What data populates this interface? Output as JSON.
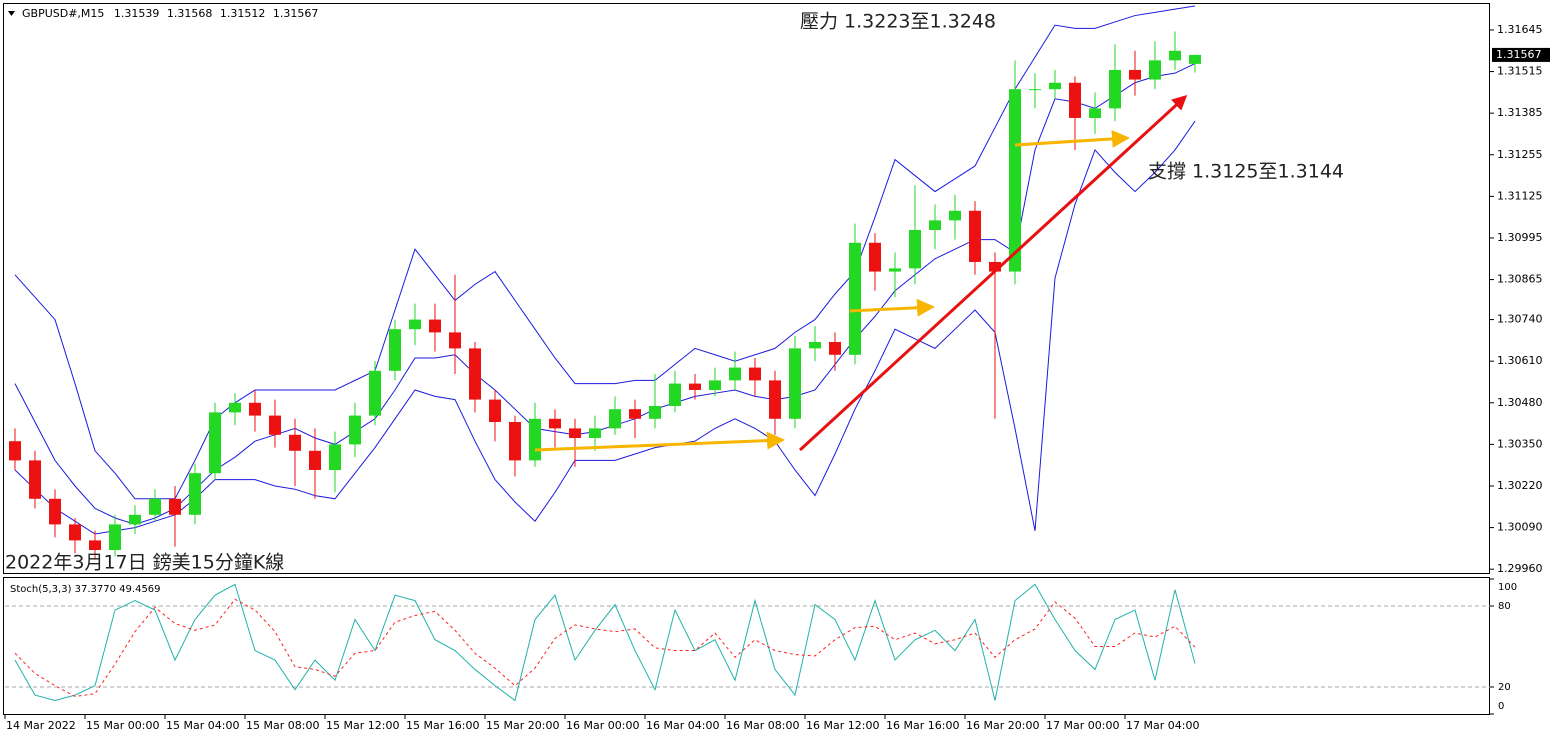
{
  "chart_data": {
    "type": "candlestick",
    "symbol": "GBPUSD#,M15",
    "title": "2022年3月17日 鎊美15分鐘K線",
    "annotations": [
      "壓力 1.3223至1.3248",
      "支撐 1.3125至1.3144"
    ],
    "up_color": "#22d822",
    "down_color": "#ee1111",
    "x": [
      "2022-03-14 20:00",
      "2022-03-14 21:00",
      "2022-03-14 22:00",
      "2022-03-14 23:00",
      "2022-03-15 00:00",
      "2022-03-15 01:00",
      "2022-03-15 02:00",
      "2022-03-15 03:00",
      "2022-03-15 04:00",
      "2022-03-15 05:00",
      "2022-03-15 06:00",
      "2022-03-15 07:00",
      "2022-03-15 08:00",
      "2022-03-15 09:00",
      "2022-03-15 10:00",
      "2022-03-15 11:00",
      "2022-03-15 12:00",
      "2022-03-15 13:00",
      "2022-03-15 14:00",
      "2022-03-15 15:00",
      "2022-03-15 16:00",
      "2022-03-15 17:00",
      "2022-03-15 18:00",
      "2022-03-15 19:00",
      "2022-03-15 20:00",
      "2022-03-15 21:00",
      "2022-03-15 22:00",
      "2022-03-15 23:00",
      "2022-03-16 00:00",
      "2022-03-16 01:00",
      "2022-03-16 02:00",
      "2022-03-16 03:00",
      "2022-03-16 04:00",
      "2022-03-16 05:00",
      "2022-03-16 06:00",
      "2022-03-16 07:00",
      "2022-03-16 08:00",
      "2022-03-16 09:00",
      "2022-03-16 10:00",
      "2022-03-16 11:00",
      "2022-03-16 12:00",
      "2022-03-16 13:00",
      "2022-03-16 14:00",
      "2022-03-16 15:00",
      "2022-03-16 16:00",
      "2022-03-16 17:00",
      "2022-03-16 18:00",
      "2022-03-16 19:00",
      "2022-03-16 20:00",
      "2022-03-16 21:00",
      "2022-03-16 22:00",
      "2022-03-16 23:00",
      "2022-03-17 00:00",
      "2022-03-17 01:00",
      "2022-03-17 02:00",
      "2022-03-17 03:00",
      "2022-03-17 04:00",
      "2022-03-17 05:00",
      "2022-03-17 06:00",
      "2022-03-17 07:00"
    ],
    "open": [
      1.3036,
      1.303,
      1.3018,
      1.301,
      1.3005,
      1.3002,
      1.301,
      1.3013,
      1.3018,
      1.3013,
      1.3026,
      1.3045,
      1.3048,
      1.3044,
      1.3038,
      1.3033,
      1.3027,
      1.3035,
      1.3044,
      1.3058,
      1.3071,
      1.3074,
      1.307,
      1.3065,
      1.3049,
      1.3042,
      1.303,
      1.3043,
      1.304,
      1.3037,
      1.304,
      1.3046,
      1.3043,
      1.3047,
      1.3054,
      1.3052,
      1.3055,
      1.3059,
      1.3055,
      1.3043,
      1.3065,
      1.3067,
      1.3063,
      1.3098,
      1.3089,
      1.309,
      1.3102,
      1.3105,
      1.3108,
      1.3092,
      1.3089,
      1.3146,
      1.3146,
      1.3148,
      1.3137,
      1.314,
      1.3152,
      1.3149,
      1.3155,
      1.31539
    ],
    "high": [
      1.304,
      1.3033,
      1.3021,
      1.3012,
      1.3008,
      1.3013,
      1.3016,
      1.3021,
      1.3022,
      1.3029,
      1.3048,
      1.3051,
      1.3052,
      1.3049,
      1.3043,
      1.304,
      1.3039,
      1.3048,
      1.3061,
      1.3074,
      1.3079,
      1.3079,
      1.3088,
      1.3067,
      1.3052,
      1.3044,
      1.3048,
      1.3046,
      1.3043,
      1.3044,
      1.305,
      1.3049,
      1.3057,
      1.3058,
      1.3057,
      1.3059,
      1.3064,
      1.3062,
      1.3058,
      1.3069,
      1.3072,
      1.307,
      1.3104,
      1.3101,
      1.3095,
      1.3116,
      1.311,
      1.3113,
      1.3111,
      1.3095,
      1.3155,
      1.3151,
      1.3152,
      1.315,
      1.3145,
      1.316,
      1.3158,
      1.3161,
      1.3164,
      1.31568
    ],
    "low": [
      1.3027,
      1.3015,
      1.3006,
      1.3001,
      1.2999,
      1.3,
      1.3007,
      1.3011,
      1.3003,
      1.301,
      1.3024,
      1.3041,
      1.3039,
      1.3034,
      1.3022,
      1.3018,
      1.302,
      1.3031,
      1.3041,
      1.3055,
      1.3066,
      1.3064,
      1.3057,
      1.3045,
      1.3036,
      1.3025,
      1.3028,
      1.3034,
      1.3028,
      1.3033,
      1.3038,
      1.3037,
      1.304,
      1.3045,
      1.3049,
      1.305,
      1.3052,
      1.305,
      1.3038,
      1.304,
      1.3061,
      1.3058,
      1.306,
      1.3083,
      1.3081,
      1.3085,
      1.3096,
      1.3099,
      1.3088,
      1.3043,
      1.3085,
      1.314,
      1.3143,
      1.3127,
      1.3132,
      1.3136,
      1.3144,
      1.3146,
      1.3152,
      1.31512
    ],
    "close": [
      1.303,
      1.3018,
      1.301,
      1.3005,
      1.3002,
      1.301,
      1.3013,
      1.3018,
      1.3013,
      1.3026,
      1.3045,
      1.3048,
      1.3044,
      1.3038,
      1.3033,
      1.3027,
      1.3035,
      1.3044,
      1.3058,
      1.3071,
      1.3074,
      1.307,
      1.3065,
      1.3049,
      1.3042,
      1.303,
      1.3043,
      1.304,
      1.3037,
      1.304,
      1.3046,
      1.3043,
      1.3047,
      1.3054,
      1.3052,
      1.3055,
      1.3059,
      1.3055,
      1.3043,
      1.3065,
      1.3067,
      1.3063,
      1.3098,
      1.3089,
      1.309,
      1.3102,
      1.3105,
      1.3108,
      1.3092,
      1.3089,
      1.3146,
      1.3146,
      1.3148,
      1.3137,
      1.314,
      1.3152,
      1.3149,
      1.3155,
      1.3158,
      1.31567
    ],
    "bollinger": {
      "color": "#1a1ae0",
      "upper": [
        1.3088,
        1.3081,
        1.3074,
        1.3054,
        1.3033,
        1.3026,
        1.3018,
        1.3018,
        1.3018,
        1.303,
        1.3043,
        1.3048,
        1.3052,
        1.3052,
        1.3052,
        1.3052,
        1.3052,
        1.3055,
        1.3058,
        1.3077,
        1.3096,
        1.3088,
        1.308,
        1.3085,
        1.3089,
        1.308,
        1.3071,
        1.3062,
        1.3054,
        1.3054,
        1.3054,
        1.3055,
        1.3055,
        1.306,
        1.3065,
        1.3063,
        1.3061,
        1.3063,
        1.3065,
        1.307,
        1.3074,
        1.3082,
        1.3089,
        1.3106,
        1.3124,
        1.3119,
        1.3114,
        1.3118,
        1.3122,
        1.3134,
        1.3146,
        1.3156,
        1.3166,
        1.3165,
        1.3165,
        1.3167,
        1.3169,
        1.317,
        1.3171,
        1.3172
      ],
      "middle": [
        1.3054,
        1.3042,
        1.303,
        1.3022,
        1.3015,
        1.3012,
        1.301,
        1.3012,
        1.3015,
        1.3021,
        1.3027,
        1.3031,
        1.3036,
        1.3038,
        1.304,
        1.3037,
        1.3035,
        1.3039,
        1.3043,
        1.3052,
        1.3062,
        1.3062,
        1.3063,
        1.3057,
        1.3052,
        1.3046,
        1.304,
        1.3039,
        1.3038,
        1.3039,
        1.3041,
        1.3043,
        1.3046,
        1.3048,
        1.305,
        1.3051,
        1.3052,
        1.305,
        1.3049,
        1.305,
        1.3052,
        1.306,
        1.3068,
        1.3075,
        1.3083,
        1.3088,
        1.3093,
        1.3096,
        1.3099,
        1.3099,
        1.3095,
        1.3127,
        1.3143,
        1.3142,
        1.314,
        1.3144,
        1.3148,
        1.315,
        1.3151,
        1.3154
      ],
      "lower": [
        1.3027,
        1.3021,
        1.3015,
        1.3011,
        1.3007,
        1.3008,
        1.3009,
        1.3011,
        1.3013,
        1.3018,
        1.3024,
        1.3024,
        1.3024,
        1.3022,
        1.3021,
        1.3019,
        1.3018,
        1.3026,
        1.3034,
        1.3043,
        1.3052,
        1.305,
        1.3049,
        1.3036,
        1.3024,
        1.3017,
        1.3011,
        1.302,
        1.303,
        1.303,
        1.303,
        1.3032,
        1.3034,
        1.3035,
        1.3036,
        1.304,
        1.3043,
        1.304,
        1.3036,
        1.3027,
        1.3019,
        1.3032,
        1.3046,
        1.3058,
        1.3071,
        1.3068,
        1.3065,
        1.3071,
        1.3077,
        1.307,
        1.304,
        1.3008,
        1.3087,
        1.311,
        1.3127,
        1.312,
        1.3114,
        1.312,
        1.3127,
        1.3136
      ]
    },
    "xlim": [
      "2022-03-14 20:00",
      "2022-03-17 22:15"
    ],
    "xticks": [
      {
        "value": "2022-03-14 20:00",
        "label": "14 Mar 2022"
      },
      {
        "value": "2022-03-15 00:00",
        "label": "15 Mar 00:00"
      },
      {
        "value": "2022-03-15 04:00",
        "label": "15 Mar 04:00"
      },
      {
        "value": "2022-03-15 08:00",
        "label": "15 Mar 08:00"
      },
      {
        "value": "2022-03-15 12:00",
        "label": "15 Mar 12:00"
      },
      {
        "value": "2022-03-15 16:00",
        "label": "15 Mar 16:00"
      },
      {
        "value": "2022-03-15 20:00",
        "label": "15 Mar 20:00"
      },
      {
        "value": "2022-03-16 00:00",
        "label": "16 Mar 00:00"
      },
      {
        "value": "2022-03-16 04:00",
        "label": "16 Mar 04:00"
      },
      {
        "value": "2022-03-16 08:00",
        "label": "16 Mar 08:00"
      },
      {
        "value": "2022-03-16 12:00",
        "label": "16 Mar 12:00"
      },
      {
        "value": "2022-03-16 16:00",
        "label": "16 Mar 16:00"
      },
      {
        "value": "2022-03-16 20:00",
        "label": "16 Mar 20:00"
      },
      {
        "value": "2022-03-17 00:00",
        "label": "17 Mar 00:00"
      },
      {
        "value": "2022-03-17 04:00",
        "label": "17 Mar 04:00"
      }
    ],
    "ylim": [
      1.29945,
      1.31723
    ],
    "yticks": [
      1.31645,
      1.31515,
      1.31385,
      1.31255,
      1.31125,
      1.30995,
      1.30865,
      {
        "value": 1.3074,
        "label": "1.30740"
      },
      {
        "value": 1.3061,
        "label": "1.30610"
      },
      {
        "value": 1.3048,
        "label": "1.30480"
      },
      {
        "value": 1.3035,
        "label": "1.30350"
      },
      {
        "value": 1.3022,
        "label": "1.30220"
      },
      {
        "value": 1.3009,
        "label": "1.30090"
      },
      {
        "value": 1.2996,
        "label": "1.29960"
      }
    ],
    "stochastic": {
      "label": "Stoch(5,3,3) 37.3770 49.4569",
      "k_color": "#20b2aa",
      "d_color": "#ff2020",
      "k": [
        40,
        14,
        10,
        14,
        21,
        77,
        84,
        77,
        40,
        70,
        88,
        96,
        47,
        40,
        18,
        40,
        25,
        70,
        47,
        88,
        84,
        55,
        47,
        33,
        21,
        10,
        70,
        88,
        40,
        62,
        81,
        47,
        18,
        77,
        47,
        55,
        25,
        84,
        33,
        14,
        81,
        70,
        40,
        84,
        40,
        55,
        62,
        47,
        70,
        10,
        84,
        96,
        70,
        47,
        33,
        70,
        77,
        25,
        92,
        37.377
      ],
      "d": [
        45,
        30,
        21,
        13,
        15,
        37,
        61,
        79,
        67,
        62,
        66,
        85,
        77,
        61,
        35,
        33,
        28,
        45,
        47,
        68,
        73,
        76,
        62,
        45,
        34,
        21,
        34,
        56,
        66,
        63,
        61,
        63,
        49,
        47,
        47,
        60,
        42,
        55,
        47,
        44,
        43,
        55,
        64,
        65,
        55,
        60,
        52,
        55,
        60,
        42,
        55,
        63,
        83,
        71,
        50,
        50,
        60,
        57,
        65,
        49.4569
      ],
      "ylim": [
        0,
        100
      ],
      "yticks": [
        100,
        80,
        20,
        0
      ],
      "levels": [
        80,
        20
      ]
    }
  }
}
